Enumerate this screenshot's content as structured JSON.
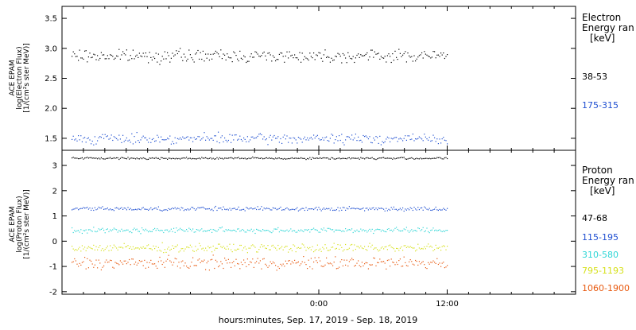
{
  "chart_data": [
    {
      "type": "scatter",
      "panel": "electron",
      "ylabel_lines": [
        "ACE EPAM",
        "log(Electron Flux)",
        "[1/(cm²s ster MeV)]"
      ],
      "ylim": [
        1.3,
        3.7
      ],
      "yticks": [
        1.5,
        2.0,
        2.5,
        3.0,
        3.5
      ],
      "ytick_labels": [
        "1.5",
        "2.0",
        "2.5",
        "3.0",
        "3.5"
      ],
      "legend": {
        "title_lines": [
          "Electron",
          "Energy ran",
          "[keV]"
        ],
        "entries": [
          "38-53",
          "175-315"
        ]
      },
      "series": [
        {
          "name": "38-53",
          "color": "#000000",
          "mean": 2.88,
          "spread": 0.05
        },
        {
          "name": "175-315",
          "color": "#1f4fd1",
          "mean": 1.5,
          "spread": 0.04
        }
      ]
    },
    {
      "type": "scatter",
      "panel": "proton",
      "ylabel_lines": [
        "ACE EPAM",
        "log(Proton Flux)",
        "[1/(cm²s ster MeV)]"
      ],
      "ylim": [
        -2.1,
        3.6
      ],
      "yticks": [
        -2,
        -1,
        0,
        1,
        2,
        3
      ],
      "ytick_labels": [
        "-2",
        "-1",
        "0",
        "1",
        "2",
        "3"
      ],
      "legend": {
        "title_lines": [
          "Proton",
          "Energy ran",
          "[keV]"
        ],
        "entries": [
          "47-68",
          "115-195",
          "310-580",
          "795-1193",
          "1060-1900"
        ]
      },
      "series": [
        {
          "name": "47-68",
          "color": "#000000",
          "mean": 3.3,
          "spread": 0.02
        },
        {
          "name": "115-195",
          "color": "#1f4fd1",
          "mean": 1.3,
          "spread": 0.04
        },
        {
          "name": "310-580",
          "color": "#2fd6d6",
          "mean": 0.45,
          "spread": 0.05
        },
        {
          "name": "795-1193",
          "color": "#d6e01a",
          "mean": -0.25,
          "spread": 0.08
        },
        {
          "name": "1060-1900",
          "color": "#e85a10",
          "mean": -0.85,
          "spread": 0.12
        }
      ]
    }
  ],
  "x_axis": {
    "title": "hours:minutes, Sep. 17, 2019 - Sep. 18, 2019",
    "range_hours": [
      -24,
      24
    ],
    "ticks": [
      0,
      12
    ],
    "tick_labels": [
      "0:00",
      "12:00"
    ],
    "data_end_hour": 12
  }
}
